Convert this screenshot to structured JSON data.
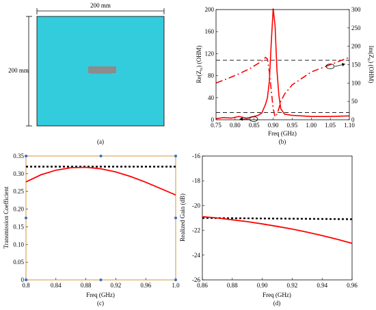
{
  "panel_a": {
    "caption": "(a)",
    "width_label": "200 mm",
    "height_label": "200 mm",
    "board_color": "#33ccdd",
    "patch_color": "#8c8c8c",
    "trace_color": "#2ecc71"
  },
  "chart_data": [
    {
      "id": "b",
      "type": "line",
      "caption": "(b)",
      "xlabel": "Freq (GHz)",
      "ylabel_left": "Re(Z_{ic}) (OHM)",
      "ylabel_right": "Im(Z_{ic}) (OHM)",
      "xlim": [
        0.75,
        1.1
      ],
      "ylim_left": [
        0,
        200
      ],
      "ylim_right": [
        0,
        300
      ],
      "xticks": [
        "0.75",
        "0.80",
        "0.85",
        "0.90",
        "0.95",
        "1.00",
        "1.05",
        "1.10"
      ],
      "yticks_left": [
        "0",
        "40",
        "80",
        "120",
        "160",
        "200"
      ],
      "yticks_right": [
        "0",
        "50",
        "100",
        "150",
        "200",
        "250",
        "300"
      ],
      "hlines": [
        {
          "y": 108,
          "axis": "left"
        },
        {
          "y": 13,
          "axis": "left"
        }
      ],
      "series": [
        {
          "axis": "left",
          "style": "solid",
          "color": "#ff0000",
          "x": [
            0.75,
            0.77,
            0.79,
            0.81,
            0.83,
            0.85,
            0.86,
            0.87,
            0.875,
            0.88,
            0.885,
            0.89,
            0.895,
            0.9,
            0.905,
            0.91,
            0.915,
            0.92,
            0.93,
            0.95,
            1.0,
            1.05,
            1.1
          ],
          "y": [
            2,
            4,
            3,
            6,
            3,
            6,
            8,
            12,
            20,
            28,
            40,
            70,
            140,
            205,
            170,
            90,
            45,
            20,
            10,
            8,
            6,
            6,
            7
          ]
        },
        {
          "axis": "right",
          "style": "dashdot",
          "color": "#ff0000",
          "x": [
            0.75,
            0.78,
            0.81,
            0.84,
            0.86,
            0.87,
            0.88,
            0.885,
            0.89,
            0.895,
            0.9,
            0.905,
            0.91,
            0.915,
            0.92,
            0.93,
            0.95,
            1.0,
            1.05,
            1.1
          ],
          "y": [
            100,
            112,
            125,
            140,
            153,
            160,
            170,
            165,
            130,
            80,
            30,
            8,
            15,
            30,
            50,
            70,
            95,
            130,
            150,
            170
          ]
        }
      ]
    },
    {
      "id": "c",
      "type": "line",
      "caption": "(c)",
      "xlabel": "Freq (GHz)",
      "ylabel": "Transmission Coefficient",
      "xlim": [
        0.8,
        1.0
      ],
      "ylim": [
        0,
        0.35
      ],
      "xticks": [
        "0.8",
        "0.84",
        "0.88",
        "0.92",
        "0.96",
        "1.0"
      ],
      "yticks": [
        "0",
        "0.05",
        "0.10",
        "0.15",
        "0.20",
        "0.25",
        "0.30",
        "0.35"
      ],
      "series": [
        {
          "style": "dotted",
          "color": "#000000",
          "x": [
            0.8,
            1.0
          ],
          "y": [
            0.32,
            0.32
          ]
        },
        {
          "style": "solid",
          "color": "#ff0000",
          "x": [
            0.8,
            0.82,
            0.84,
            0.86,
            0.88,
            0.9,
            0.92,
            0.94,
            0.96,
            0.98,
            1.0
          ],
          "y": [
            0.277,
            0.297,
            0.31,
            0.317,
            0.318,
            0.314,
            0.305,
            0.292,
            0.276,
            0.258,
            0.24
          ]
        }
      ]
    },
    {
      "id": "d",
      "type": "line",
      "caption": "(d)",
      "xlabel": "Freq (GHz)",
      "ylabel": "Realized Gain (dB)",
      "xlim": [
        0.86,
        0.96
      ],
      "ylim": [
        -26,
        -16
      ],
      "xticks": [
        "0.86",
        "0.88",
        "0.90",
        "0.92",
        "0.94",
        "0.96"
      ],
      "yticks": [
        "-26",
        "-24",
        "-22",
        "-20",
        "-18",
        "-16"
      ],
      "series": [
        {
          "style": "dotted",
          "color": "#000000",
          "x": [
            0.86,
            0.96
          ],
          "y": [
            -21.0,
            -21.1
          ]
        },
        {
          "style": "solid",
          "color": "#ff0000",
          "x": [
            0.86,
            0.87,
            0.88,
            0.89,
            0.9,
            0.91,
            0.92,
            0.93,
            0.94,
            0.95,
            0.96
          ],
          "y": [
            -20.9,
            -21.0,
            -21.15,
            -21.3,
            -21.48,
            -21.68,
            -21.9,
            -22.15,
            -22.42,
            -22.72,
            -23.05
          ]
        }
      ]
    }
  ]
}
